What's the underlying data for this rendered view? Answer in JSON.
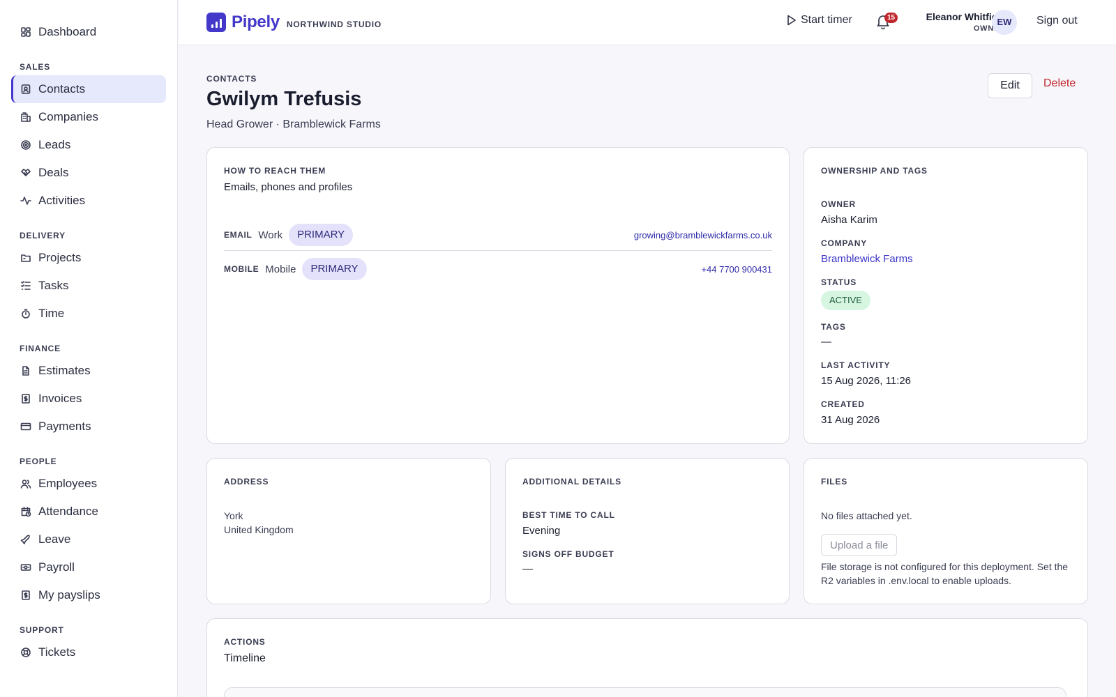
{
  "sidebar": {
    "top": {
      "label": "Dashboard",
      "icon": "dashboard-icon"
    },
    "sections": [
      {
        "title": "SALES",
        "items": [
          {
            "label": "Contacts",
            "icon": "contacts-icon",
            "active": true
          },
          {
            "label": "Companies",
            "icon": "building-icon"
          },
          {
            "label": "Leads",
            "icon": "target-icon"
          },
          {
            "label": "Deals",
            "icon": "handshake-icon"
          },
          {
            "label": "Activities",
            "icon": "activity-icon"
          }
        ]
      },
      {
        "title": "DELIVERY",
        "items": [
          {
            "label": "Projects",
            "icon": "folder-icon"
          },
          {
            "label": "Tasks",
            "icon": "checklist-icon"
          },
          {
            "label": "Time",
            "icon": "stopwatch-icon"
          }
        ]
      },
      {
        "title": "FINANCE",
        "items": [
          {
            "label": "Estimates",
            "icon": "document-icon"
          },
          {
            "label": "Invoices",
            "icon": "invoice-icon"
          },
          {
            "label": "Payments",
            "icon": "card-icon"
          }
        ]
      },
      {
        "title": "PEOPLE",
        "items": [
          {
            "label": "Employees",
            "icon": "users-icon"
          },
          {
            "label": "Attendance",
            "icon": "calendar-clock-icon"
          },
          {
            "label": "Leave",
            "icon": "plane-icon"
          },
          {
            "label": "Payroll",
            "icon": "banknote-icon"
          },
          {
            "label": "My payslips",
            "icon": "payslip-icon"
          }
        ]
      },
      {
        "title": "SUPPORT",
        "items": [
          {
            "label": "Tickets",
            "icon": "lifebuoy-icon"
          }
        ]
      }
    ]
  },
  "header": {
    "brand": "Pipely",
    "org": "NORTHWIND STUDIO",
    "start_timer": "Start timer",
    "notifications": "15",
    "user_name": "Eleanor Whitfield",
    "user_role": "OWNER",
    "avatar": "EW",
    "sign_out": "Sign out"
  },
  "page": {
    "breadcrumb": "CONTACTS",
    "title": "Gwilym Trefusis",
    "subtitle": "Head Grower · Bramblewick Farms",
    "edit": "Edit",
    "delete": "Delete"
  },
  "reach": {
    "eyebrow": "HOW TO REACH THEM",
    "heading": "Emails, phones and profiles",
    "rows": [
      {
        "kind": "EMAIL",
        "label": "Work",
        "badge": "PRIMARY",
        "value": "growing@bramblewickfarms.co.uk"
      },
      {
        "kind": "MOBILE",
        "label": "Mobile",
        "badge": "PRIMARY",
        "value": "+44 7700 900431"
      }
    ]
  },
  "ownership": {
    "eyebrow": "OWNERSHIP AND TAGS",
    "owner_label": "OWNER",
    "owner": "Aisha Karim",
    "company_label": "COMPANY",
    "company": "Bramblewick Farms",
    "status_label": "STATUS",
    "status": "ACTIVE",
    "tags_label": "TAGS",
    "tags": "—",
    "last_activity_label": "LAST ACTIVITY",
    "last_activity": "15 Aug 2026, 11:26",
    "created_label": "CREATED",
    "created": "31 Aug 2026"
  },
  "address": {
    "eyebrow": "ADDRESS",
    "city": "York",
    "country": "United Kingdom"
  },
  "details": {
    "eyebrow": "ADDITIONAL DETAILS",
    "best_time_label": "BEST TIME TO CALL",
    "best_time": "Evening",
    "signs_off_label": "SIGNS OFF BUDGET",
    "signs_off": "—"
  },
  "files": {
    "eyebrow": "FILES",
    "empty": "No files attached yet.",
    "upload": "Upload a file",
    "note": "File storage is not configured for this deployment. Set the R2 variables in .env.local to enable uploads."
  },
  "actions": {
    "eyebrow": "ACTIONS",
    "heading": "Timeline"
  },
  "colors": {
    "accent": "#4338ca",
    "danger": "#c0262d",
    "success_bg": "#d6f6e2"
  }
}
